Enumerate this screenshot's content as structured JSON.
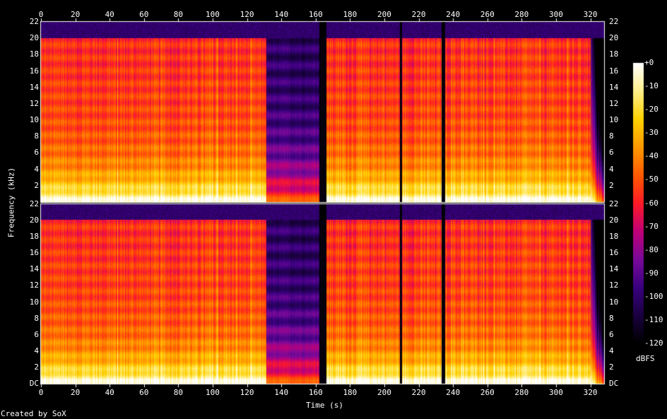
{
  "chart_data": {
    "type": "heatmap",
    "title": "",
    "xlabel": "Time (s)",
    "ylabel": "Frequency (kHz)",
    "xlim": [
      0,
      328
    ],
    "ylim": [
      0,
      22
    ],
    "x_ticks": [
      0,
      20,
      40,
      60,
      80,
      100,
      120,
      140,
      160,
      180,
      200,
      220,
      240,
      260,
      280,
      300,
      320
    ],
    "top_x_ticks": [
      0,
      20,
      40,
      60,
      80,
      100,
      120,
      140,
      160,
      180,
      200,
      220,
      240,
      260,
      280,
      300,
      320
    ],
    "channel1_y_ticks": [
      "2",
      "4",
      "6",
      "8",
      "10",
      "12",
      "14",
      "16",
      "18",
      "20",
      "22"
    ],
    "channel2_y_ticks": [
      "DC",
      "2",
      "4",
      "6",
      "8",
      "10",
      "12",
      "14",
      "16",
      "18",
      "20",
      "22"
    ],
    "channels": 2,
    "colorbar": {
      "label": "dBFS",
      "ticks": [
        "+0",
        "-10",
        "-20",
        "-30",
        "-40",
        "-50",
        "-60",
        "-70",
        "-80",
        "-90",
        "-100",
        "-110",
        "-120"
      ],
      "range": [
        -120,
        0
      ],
      "palette": [
        "#000000",
        "#1a0040",
        "#3a0080",
        "#7a0a9a",
        "#c00078",
        "#ff1a28",
        "#ff5a00",
        "#ff9900",
        "#ffd200",
        "#fff08a",
        "#ffffff"
      ]
    },
    "segments": [
      {
        "start": 0,
        "end": 131,
        "level": "loud"
      },
      {
        "start": 131,
        "end": 162,
        "level": "quiet"
      },
      {
        "start": 162,
        "end": 166,
        "level": "silence"
      },
      {
        "start": 166,
        "end": 209,
        "level": "loud"
      },
      {
        "start": 209,
        "end": 210,
        "level": "silence"
      },
      {
        "start": 210,
        "end": 233,
        "level": "loud"
      },
      {
        "start": 233,
        "end": 235,
        "level": "silence"
      },
      {
        "start": 235,
        "end": 320,
        "level": "loud"
      },
      {
        "start": 320,
        "end": 328,
        "level": "fade"
      }
    ]
  },
  "footer": {
    "credit": "Created by SoX"
  }
}
